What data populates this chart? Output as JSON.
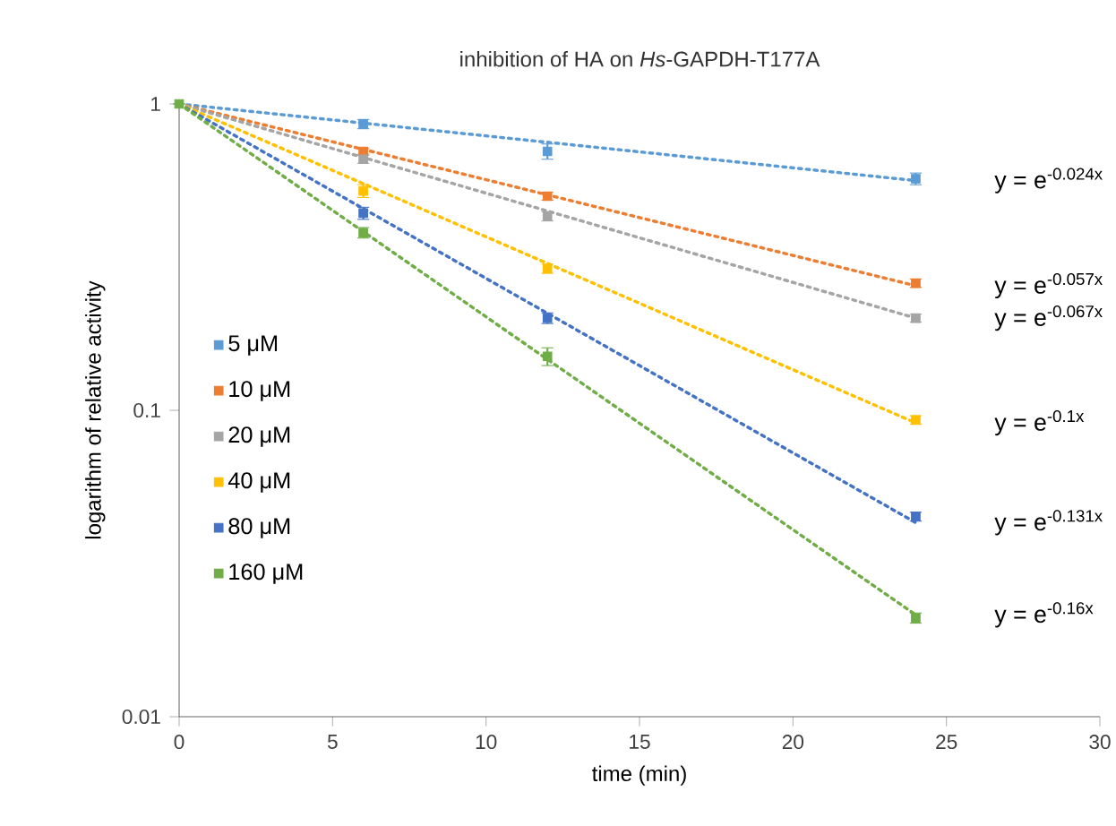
{
  "chart_data": {
    "type": "scatter",
    "title": "inhibition of HA on *Hs*-GAPDH-T177A",
    "xlabel": "time (min)",
    "ylabel": "logarithm of relative activity",
    "xlim": [
      0,
      30
    ],
    "xticks": [
      0,
      5,
      10,
      15,
      20,
      25,
      30
    ],
    "ylim": [
      0.01,
      1
    ],
    "yticks": [
      0.01,
      0.1,
      1
    ],
    "log": "y",
    "grid": false,
    "legend": "left",
    "marker": "square",
    "series": [
      {
        "name": "5 μM",
        "color": "#5b9bd5",
        "x": [
          6,
          12,
          24
        ],
        "values": [
          0.86,
          0.7,
          0.57
        ],
        "errors": [
          0.03,
          0.04,
          0.025
        ]
      },
      {
        "name": "10 μM",
        "color": "#ed7d31",
        "x": [
          6,
          12,
          24
        ],
        "values": [
          0.7,
          0.5,
          0.26
        ],
        "errors": [
          0.015,
          0.015,
          0.008
        ]
      },
      {
        "name": "20 μM",
        "color": "#a5a5a5",
        "x": [
          6,
          12,
          24
        ],
        "values": [
          0.66,
          0.43,
          0.2
        ],
        "errors": [
          0.02,
          0.015,
          0.006
        ]
      },
      {
        "name": "40 μM",
        "color": "#ffc000",
        "x": [
          6,
          12,
          24
        ],
        "values": [
          0.52,
          0.29,
          0.093
        ],
        "errors": [
          0.025,
          0.01,
          0.003
        ]
      },
      {
        "name": "80 μM",
        "color": "#4472c4",
        "x": [
          6,
          12,
          24
        ],
        "values": [
          0.44,
          0.2,
          0.045
        ],
        "errors": [
          0.02,
          0.008,
          0.0015
        ]
      },
      {
        "name": "160 μM",
        "color": "#70ad47",
        "x": [
          0,
          6,
          12,
          24
        ],
        "values": [
          1,
          0.38,
          0.15,
          0.021
        ],
        "errors": [
          null,
          0.015,
          0.01,
          0.0008
        ]
      },
      {
        "type": "line",
        "line_style": "dotted",
        "marker": "none",
        "color": "#5b9bd5",
        "x": [
          0,
          24
        ],
        "values": [
          1,
          0.562
        ]
      },
      {
        "type": "line",
        "line_style": "dotted",
        "marker": "none",
        "color": "#ed7d31",
        "x": [
          0,
          24
        ],
        "values": [
          1,
          0.255
        ]
      },
      {
        "type": "line",
        "line_style": "dotted",
        "marker": "none",
        "color": "#a5a5a5",
        "x": [
          0,
          24
        ],
        "values": [
          1,
          0.2
        ]
      },
      {
        "type": "line",
        "line_style": "dotted",
        "marker": "none",
        "color": "#ffc000",
        "x": [
          0,
          24
        ],
        "values": [
          1,
          0.091
        ]
      },
      {
        "type": "line",
        "line_style": "dotted",
        "marker": "none",
        "color": "#4472c4",
        "x": [
          0,
          24
        ],
        "values": [
          1,
          0.043
        ]
      },
      {
        "type": "line",
        "line_style": "dotted",
        "marker": "none",
        "color": "#70ad47",
        "x": [
          0,
          24
        ],
        "values": [
          1,
          0.0215
        ]
      }
    ],
    "annotations": [
      "y = e$^{-0.024x}$",
      "y = e$^{-0.057x}$",
      "y = e$^{-0.067x}$",
      "y = e$^{-0.1x}$",
      "y = e$^{-0.131x}$",
      "y = e$^{-0.16x}$"
    ]
  }
}
